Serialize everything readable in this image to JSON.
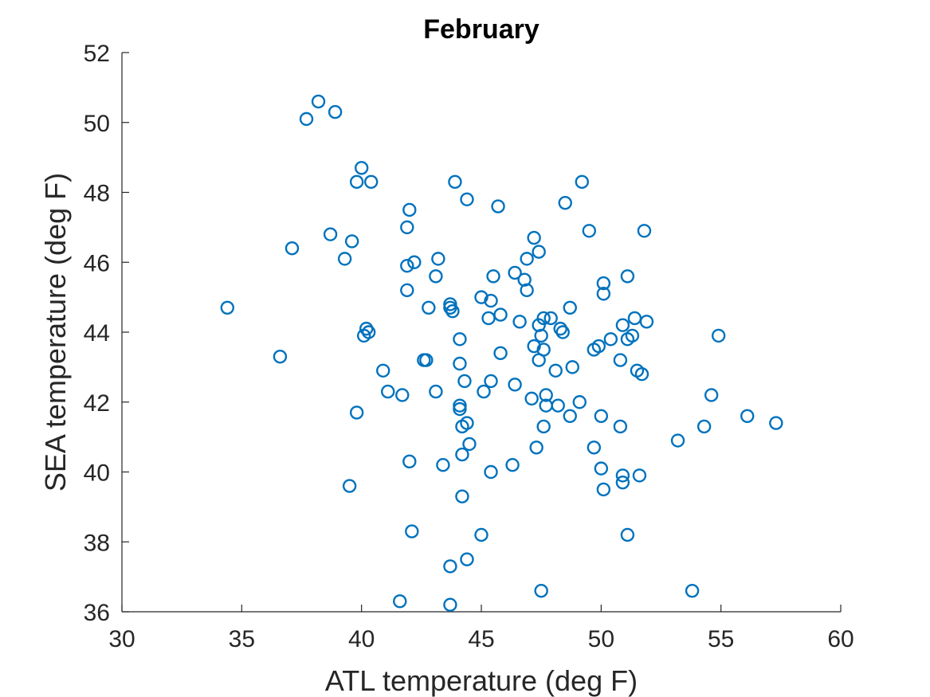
{
  "chart_data": {
    "type": "scatter",
    "title": "February",
    "xlabel": "ATL temperature (deg F)",
    "ylabel": "SEA temperature (deg F)",
    "xlim": [
      30,
      60
    ],
    "ylim": [
      36,
      52
    ],
    "xticks": [
      30,
      35,
      40,
      45,
      50,
      55,
      60
    ],
    "yticks": [
      36,
      38,
      40,
      42,
      44,
      46,
      48,
      50,
      52
    ],
    "grid": false,
    "legend": "none",
    "marker": "circle-open",
    "color": "#0072BD",
    "points": [
      [
        34.4,
        44.7
      ],
      [
        36.6,
        43.3
      ],
      [
        37.1,
        46.4
      ],
      [
        37.7,
        50.1
      ],
      [
        38.2,
        50.6
      ],
      [
        38.9,
        50.3
      ],
      [
        38.7,
        46.8
      ],
      [
        39.3,
        46.1
      ],
      [
        39.6,
        46.6
      ],
      [
        39.5,
        39.6
      ],
      [
        39.8,
        41.7
      ],
      [
        39.8,
        48.3
      ],
      [
        40.0,
        48.7
      ],
      [
        40.4,
        48.3
      ],
      [
        40.1,
        43.9
      ],
      [
        40.2,
        44.1
      ],
      [
        40.3,
        44.0
      ],
      [
        40.9,
        42.9
      ],
      [
        41.1,
        42.3
      ],
      [
        41.6,
        36.3
      ],
      [
        41.7,
        42.2
      ],
      [
        41.9,
        45.2
      ],
      [
        41.9,
        47.0
      ],
      [
        42.0,
        47.5
      ],
      [
        41.9,
        45.9
      ],
      [
        42.2,
        46.0
      ],
      [
        42.0,
        40.3
      ],
      [
        42.1,
        38.3
      ],
      [
        42.6,
        43.2
      ],
      [
        42.7,
        43.2
      ],
      [
        42.8,
        44.7
      ],
      [
        43.1,
        45.6
      ],
      [
        43.2,
        46.1
      ],
      [
        43.1,
        42.3
      ],
      [
        43.4,
        40.2
      ],
      [
        43.7,
        44.8
      ],
      [
        43.7,
        44.7
      ],
      [
        43.8,
        44.6
      ],
      [
        43.9,
        48.3
      ],
      [
        43.7,
        37.3
      ],
      [
        43.7,
        36.2
      ],
      [
        44.1,
        43.8
      ],
      [
        44.1,
        43.1
      ],
      [
        44.1,
        41.9
      ],
      [
        44.1,
        41.8
      ],
      [
        44.2,
        41.3
      ],
      [
        44.2,
        40.5
      ],
      [
        44.2,
        39.3
      ],
      [
        44.3,
        42.6
      ],
      [
        44.4,
        41.4
      ],
      [
        44.4,
        47.8
      ],
      [
        44.4,
        37.5
      ],
      [
        44.5,
        40.8
      ],
      [
        45.0,
        45.0
      ],
      [
        45.0,
        38.2
      ],
      [
        45.1,
        42.3
      ],
      [
        45.3,
        44.4
      ],
      [
        45.4,
        44.9
      ],
      [
        45.4,
        42.6
      ],
      [
        45.4,
        40.0
      ],
      [
        45.5,
        45.6
      ],
      [
        45.7,
        47.6
      ],
      [
        45.8,
        44.5
      ],
      [
        45.8,
        43.4
      ],
      [
        46.3,
        40.2
      ],
      [
        46.4,
        45.7
      ],
      [
        46.4,
        42.5
      ],
      [
        46.6,
        44.3
      ],
      [
        46.8,
        45.5
      ],
      [
        46.9,
        46.1
      ],
      [
        46.9,
        45.2
      ],
      [
        47.1,
        42.1
      ],
      [
        47.2,
        46.7
      ],
      [
        47.2,
        43.6
      ],
      [
        47.3,
        40.7
      ],
      [
        47.4,
        46.3
      ],
      [
        47.4,
        44.2
      ],
      [
        47.4,
        43.2
      ],
      [
        47.5,
        43.9
      ],
      [
        47.5,
        36.6
      ],
      [
        47.6,
        44.4
      ],
      [
        47.6,
        43.5
      ],
      [
        47.6,
        41.3
      ],
      [
        47.7,
        42.2
      ],
      [
        47.7,
        41.9
      ],
      [
        47.9,
        44.4
      ],
      [
        48.1,
        42.9
      ],
      [
        48.2,
        41.9
      ],
      [
        48.3,
        44.1
      ],
      [
        48.4,
        44.0
      ],
      [
        48.5,
        47.7
      ],
      [
        48.7,
        44.7
      ],
      [
        48.7,
        41.6
      ],
      [
        48.8,
        43.0
      ],
      [
        49.1,
        42.0
      ],
      [
        49.2,
        48.3
      ],
      [
        49.5,
        46.9
      ],
      [
        49.7,
        43.5
      ],
      [
        49.7,
        40.7
      ],
      [
        49.9,
        43.6
      ],
      [
        50.0,
        41.6
      ],
      [
        50.0,
        40.1
      ],
      [
        50.1,
        45.4
      ],
      [
        50.1,
        45.1
      ],
      [
        50.1,
        39.5
      ],
      [
        50.4,
        43.8
      ],
      [
        50.8,
        43.2
      ],
      [
        50.8,
        41.3
      ],
      [
        50.9,
        44.2
      ],
      [
        50.9,
        39.9
      ],
      [
        50.9,
        39.7
      ],
      [
        51.1,
        45.6
      ],
      [
        51.1,
        43.8
      ],
      [
        51.1,
        38.2
      ],
      [
        51.3,
        43.9
      ],
      [
        51.4,
        44.4
      ],
      [
        51.5,
        42.9
      ],
      [
        51.6,
        39.9
      ],
      [
        51.7,
        42.8
      ],
      [
        51.8,
        46.9
      ],
      [
        51.9,
        44.3
      ],
      [
        53.2,
        40.9
      ],
      [
        53.8,
        36.6
      ],
      [
        54.3,
        41.3
      ],
      [
        54.6,
        42.2
      ],
      [
        54.9,
        43.9
      ],
      [
        56.1,
        41.6
      ],
      [
        57.3,
        41.4
      ]
    ]
  }
}
